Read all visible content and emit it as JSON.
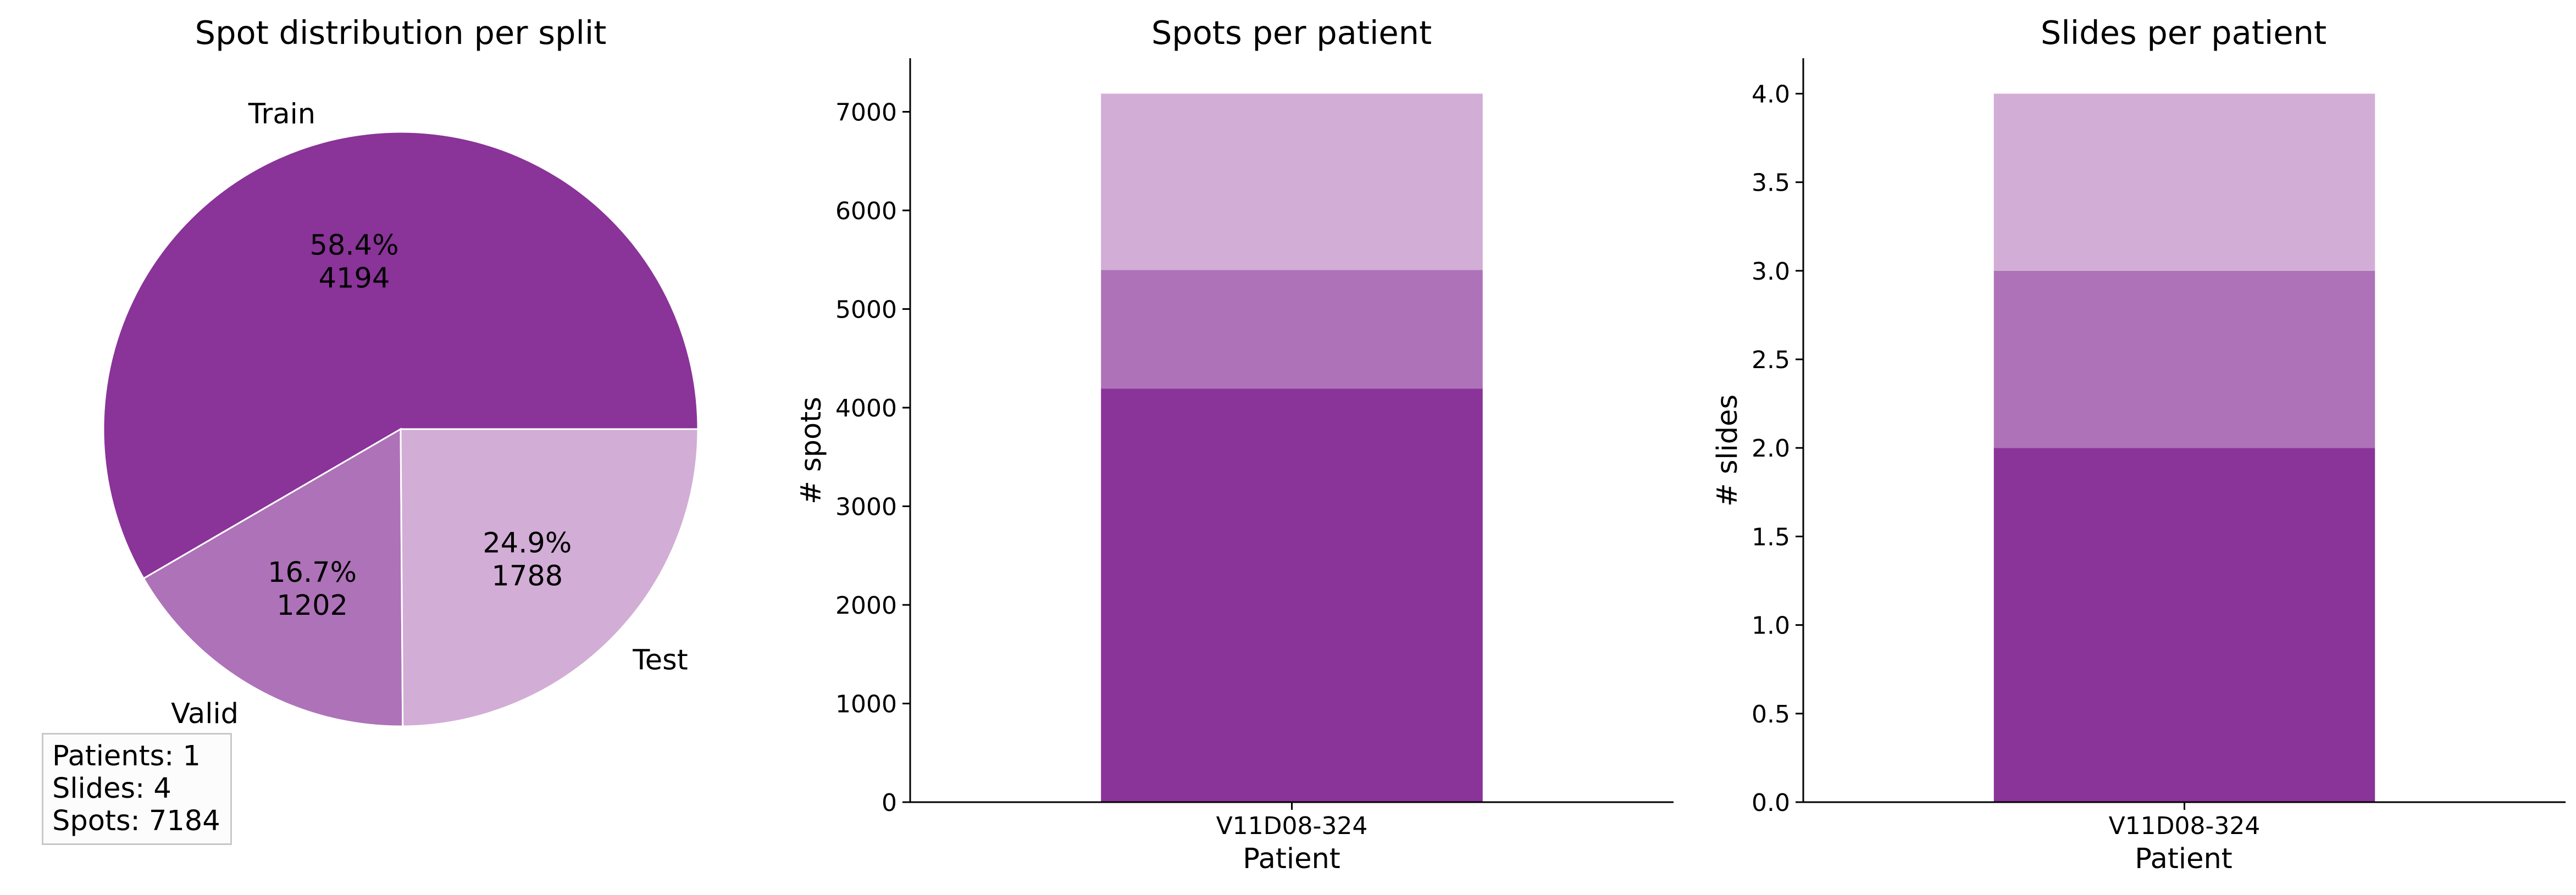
{
  "colors": {
    "train": "#8a3399",
    "valid": "#ae72b8",
    "test": "#d2adD6"
  },
  "stats": [
    "Patients: 1",
    "Slides: 4",
    "Spots: 7184"
  ],
  "chart_data": [
    {
      "type": "pie",
      "title": "Spot distribution per split",
      "labels": [
        "Train",
        "Valid",
        "Test"
      ],
      "values": [
        4194,
        1202,
        1788
      ],
      "percent_labels": [
        "58.4%",
        "16.7%",
        "24.9%"
      ],
      "value_labels": [
        "4194",
        "1202",
        "1788"
      ]
    },
    {
      "type": "bar",
      "stacked": true,
      "title": "Spots per patient",
      "xlabel": "Patient",
      "ylabel": "# spots",
      "categories": [
        "V11D08-324"
      ],
      "series": [
        {
          "values": [
            4194
          ]
        },
        {
          "values": [
            1202
          ]
        },
        {
          "values": [
            1788
          ]
        }
      ],
      "ylim": [
        0,
        7543
      ],
      "yticks": [
        0,
        1000,
        2000,
        3000,
        4000,
        5000,
        6000,
        7000
      ],
      "ytick_labels": [
        "0",
        "1000",
        "2000",
        "3000",
        "4000",
        "5000",
        "6000",
        "7000"
      ],
      "grid": false
    },
    {
      "type": "bar",
      "stacked": true,
      "title": "Slides per patient",
      "xlabel": "Patient",
      "ylabel": "# slides",
      "categories": [
        "V11D08-324"
      ],
      "series": [
        {
          "values": [
            2
          ]
        },
        {
          "values": [
            1
          ]
        },
        {
          "values": [
            1
          ]
        }
      ],
      "ylim": [
        0,
        4.2
      ],
      "yticks": [
        0,
        0.5,
        1,
        1.5,
        2,
        2.5,
        3,
        3.5,
        4
      ],
      "ytick_labels": [
        "0.0",
        "0.5",
        "1.0",
        "1.5",
        "2.0",
        "2.5",
        "3.0",
        "3.5",
        "4.0"
      ],
      "grid": false
    }
  ]
}
